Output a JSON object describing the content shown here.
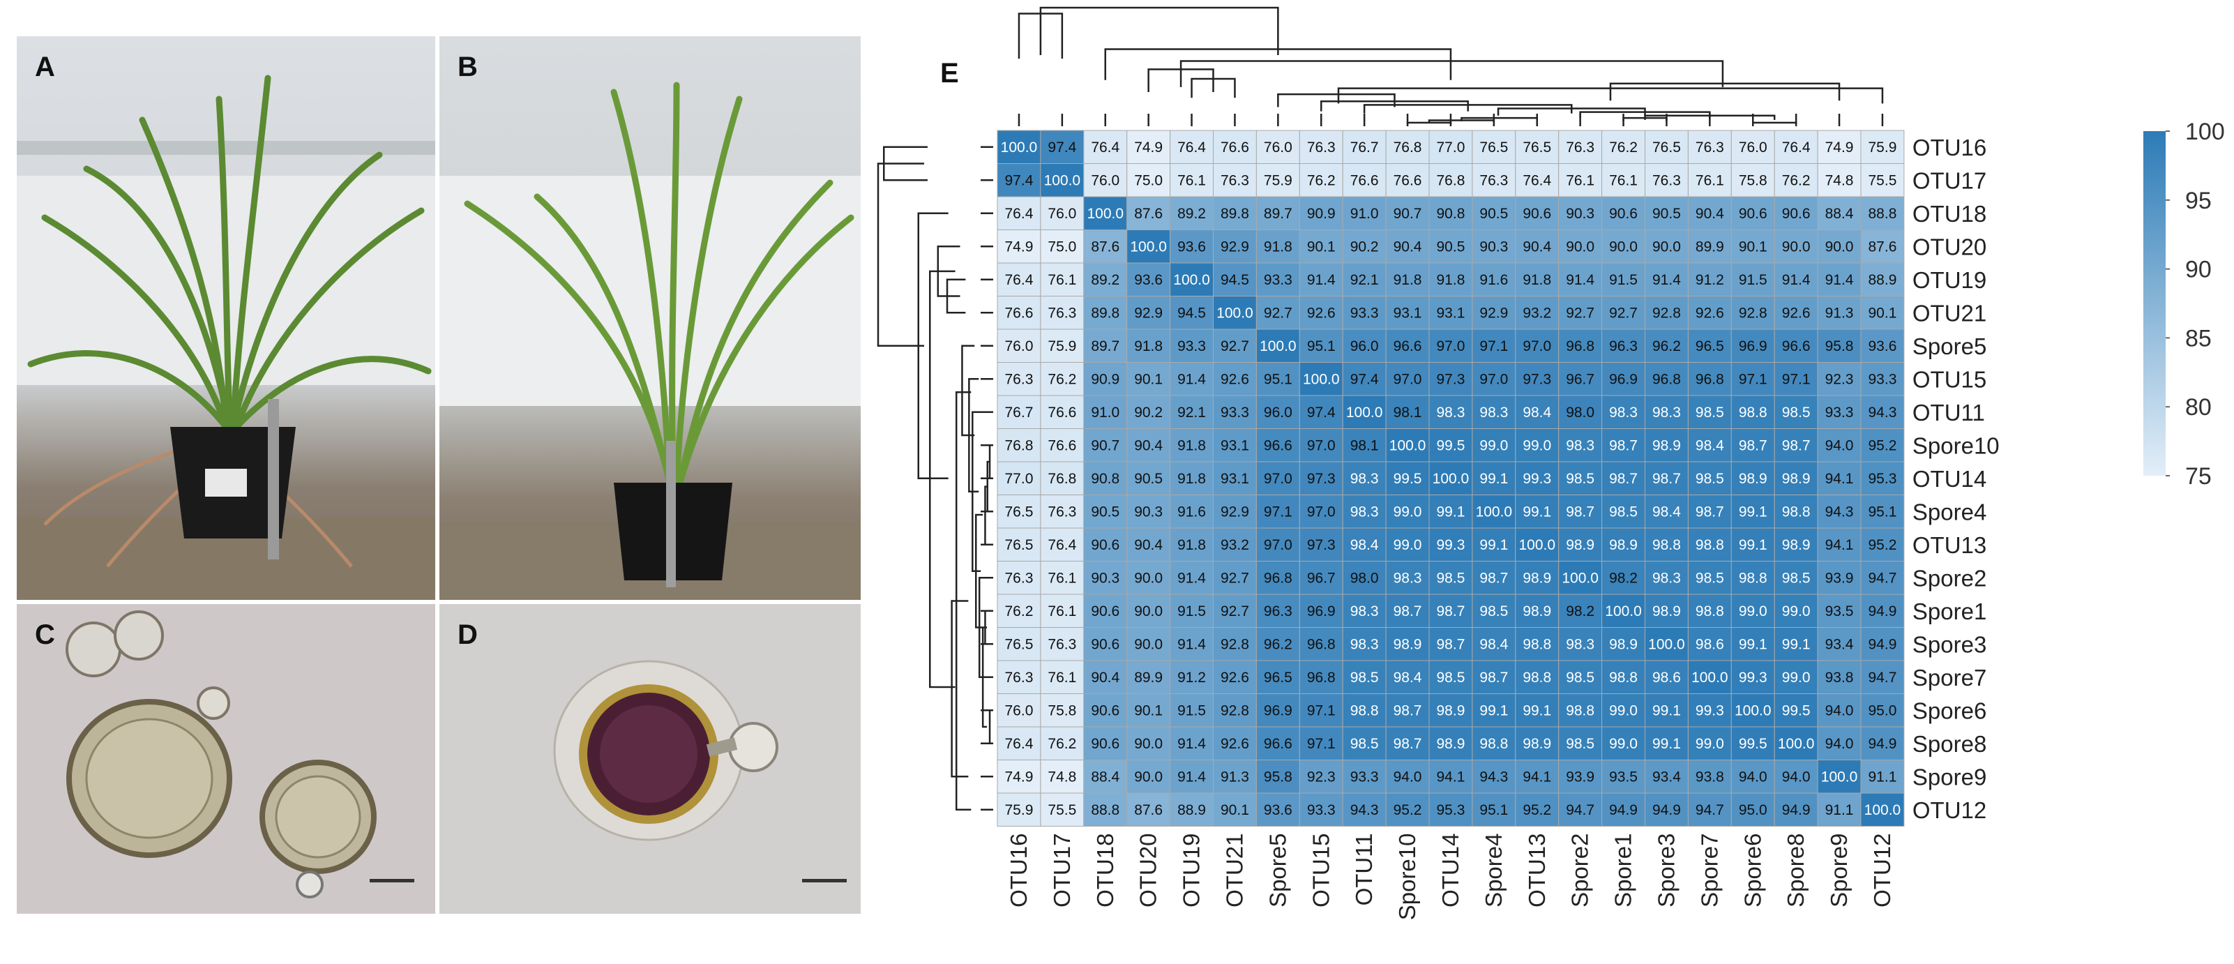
{
  "panels": {
    "a": "A",
    "b": "B",
    "c": "C",
    "d": "D",
    "e": "E"
  },
  "chart_data": {
    "type": "heatmap",
    "title": "",
    "rows": [
      "OTU16",
      "OTU17",
      "OTU18",
      "OTU20",
      "OTU19",
      "OTU21",
      "Spore5",
      "OTU15",
      "OTU11",
      "Spore10",
      "OTU14",
      "Spore4",
      "OTU13",
      "Spore2",
      "Spore1",
      "Spore3",
      "Spore7",
      "Spore6",
      "Spore8",
      "Spore9",
      "OTU12"
    ],
    "columns": [
      "OTU16",
      "OTU17",
      "OTU18",
      "OTU20",
      "OTU19",
      "OTU21",
      "Spore5",
      "OTU15",
      "OTU11",
      "Spore10",
      "OTU14",
      "Spore4",
      "OTU13",
      "Spore2",
      "Spore1",
      "Spore3",
      "Spore7",
      "Spore6",
      "Spore8",
      "Spore9",
      "OTU12"
    ],
    "values": [
      [
        100.0,
        97.4,
        76.4,
        74.9,
        76.4,
        76.6,
        76.0,
        76.3,
        76.7,
        76.8,
        77.0,
        76.5,
        76.5,
        76.3,
        76.2,
        76.5,
        76.3,
        76.0,
        76.4,
        74.9,
        75.9
      ],
      [
        97.4,
        100.0,
        76.0,
        75.0,
        76.1,
        76.3,
        75.9,
        76.2,
        76.6,
        76.6,
        76.8,
        76.3,
        76.4,
        76.1,
        76.1,
        76.3,
        76.1,
        75.8,
        76.2,
        74.8,
        75.5
      ],
      [
        76.4,
        76.0,
        100.0,
        87.6,
        89.2,
        89.8,
        89.7,
        90.9,
        91.0,
        90.7,
        90.8,
        90.5,
        90.6,
        90.3,
        90.6,
        90.5,
        90.4,
        90.6,
        90.6,
        88.4,
        88.8
      ],
      [
        74.9,
        75.0,
        87.6,
        100.0,
        93.6,
        92.9,
        91.8,
        90.1,
        90.2,
        90.4,
        90.5,
        90.3,
        90.4,
        90.0,
        90.0,
        90.0,
        89.9,
        90.1,
        90.0,
        90.0,
        87.6
      ],
      [
        76.4,
        76.1,
        89.2,
        93.6,
        100.0,
        94.5,
        93.3,
        91.4,
        92.1,
        91.8,
        91.8,
        91.6,
        91.8,
        91.4,
        91.5,
        91.4,
        91.2,
        91.5,
        91.4,
        91.4,
        88.9
      ],
      [
        76.6,
        76.3,
        89.8,
        92.9,
        94.5,
        100.0,
        92.7,
        92.6,
        93.3,
        93.1,
        93.1,
        92.9,
        93.2,
        92.7,
        92.7,
        92.8,
        92.6,
        92.8,
        92.6,
        91.3,
        90.1
      ],
      [
        76.0,
        75.9,
        89.7,
        91.8,
        93.3,
        92.7,
        100.0,
        95.1,
        96.0,
        96.6,
        97.0,
        97.1,
        97.0,
        96.8,
        96.3,
        96.2,
        96.5,
        96.9,
        96.6,
        95.8,
        93.6
      ],
      [
        76.3,
        76.2,
        90.9,
        90.1,
        91.4,
        92.6,
        95.1,
        100.0,
        97.4,
        97.0,
        97.3,
        97.0,
        97.3,
        96.7,
        96.9,
        96.8,
        96.8,
        97.1,
        97.1,
        92.3,
        93.3
      ],
      [
        76.7,
        76.6,
        91.0,
        90.2,
        92.1,
        93.3,
        96.0,
        97.4,
        100.0,
        98.1,
        98.3,
        98.3,
        98.4,
        98.0,
        98.3,
        98.3,
        98.5,
        98.8,
        98.5,
        93.3,
        94.3
      ],
      [
        76.8,
        76.6,
        90.7,
        90.4,
        91.8,
        93.1,
        96.6,
        97.0,
        98.1,
        100.0,
        99.5,
        99.0,
        99.0,
        98.3,
        98.7,
        98.9,
        98.4,
        98.7,
        98.7,
        94.0,
        95.2
      ],
      [
        77.0,
        76.8,
        90.8,
        90.5,
        91.8,
        93.1,
        97.0,
        97.3,
        98.3,
        99.5,
        100.0,
        99.1,
        99.3,
        98.5,
        98.7,
        98.7,
        98.5,
        98.9,
        98.9,
        94.1,
        95.3
      ],
      [
        76.5,
        76.3,
        90.5,
        90.3,
        91.6,
        92.9,
        97.1,
        97.0,
        98.3,
        99.0,
        99.1,
        100.0,
        99.1,
        98.7,
        98.5,
        98.4,
        98.7,
        99.1,
        98.8,
        94.3,
        95.1
      ],
      [
        76.5,
        76.4,
        90.6,
        90.4,
        91.8,
        93.2,
        97.0,
        97.3,
        98.4,
        99.0,
        99.3,
        99.1,
        100.0,
        98.9,
        98.9,
        98.8,
        98.8,
        99.1,
        98.9,
        94.1,
        95.2
      ],
      [
        76.3,
        76.1,
        90.3,
        90.0,
        91.4,
        92.7,
        96.8,
        96.7,
        98.0,
        98.3,
        98.5,
        98.7,
        98.9,
        100.0,
        98.2,
        98.3,
        98.5,
        98.8,
        98.5,
        93.9,
        94.7
      ],
      [
        76.2,
        76.1,
        90.6,
        90.0,
        91.5,
        92.7,
        96.3,
        96.9,
        98.3,
        98.7,
        98.7,
        98.5,
        98.9,
        98.2,
        100.0,
        98.9,
        98.8,
        99.0,
        99.0,
        93.5,
        94.9
      ],
      [
        76.5,
        76.3,
        90.6,
        90.0,
        91.4,
        92.8,
        96.2,
        96.8,
        98.3,
        98.9,
        98.7,
        98.4,
        98.8,
        98.3,
        98.9,
        100.0,
        98.6,
        99.1,
        99.1,
        93.4,
        94.9
      ],
      [
        76.3,
        76.1,
        90.4,
        89.9,
        91.2,
        92.6,
        96.5,
        96.8,
        98.5,
        98.4,
        98.5,
        98.7,
        98.8,
        98.5,
        98.8,
        98.6,
        100.0,
        99.3,
        99.0,
        93.8,
        94.7
      ],
      [
        76.0,
        75.8,
        90.6,
        90.1,
        91.5,
        92.8,
        96.9,
        97.1,
        98.8,
        98.7,
        98.9,
        99.1,
        99.1,
        98.8,
        99.0,
        99.1,
        99.3,
        100.0,
        99.5,
        94.0,
        95.0
      ],
      [
        76.4,
        76.2,
        90.6,
        90.0,
        91.4,
        92.6,
        96.6,
        97.1,
        98.5,
        98.7,
        98.9,
        98.8,
        98.9,
        98.5,
        99.0,
        99.1,
        99.0,
        99.5,
        100.0,
        94.0,
        94.9
      ],
      [
        74.9,
        74.8,
        88.4,
        90.0,
        91.4,
        91.3,
        95.8,
        92.3,
        93.3,
        94.0,
        94.1,
        94.3,
        94.1,
        93.9,
        93.5,
        93.4,
        93.8,
        94.0,
        94.0,
        100.0,
        91.1
      ],
      [
        75.9,
        75.5,
        88.8,
        87.6,
        88.9,
        90.1,
        93.6,
        93.3,
        94.3,
        95.2,
        95.3,
        95.1,
        95.2,
        94.7,
        94.9,
        94.9,
        94.7,
        95.0,
        94.9,
        91.1,
        100.0
      ]
    ],
    "colorbar": {
      "min": 75,
      "max": 100,
      "ticks": [
        100,
        95,
        90,
        85,
        80,
        75
      ],
      "color_low": "#e3eef8",
      "color_high": "#2d7bb6"
    },
    "dendrograms": "top and left"
  }
}
